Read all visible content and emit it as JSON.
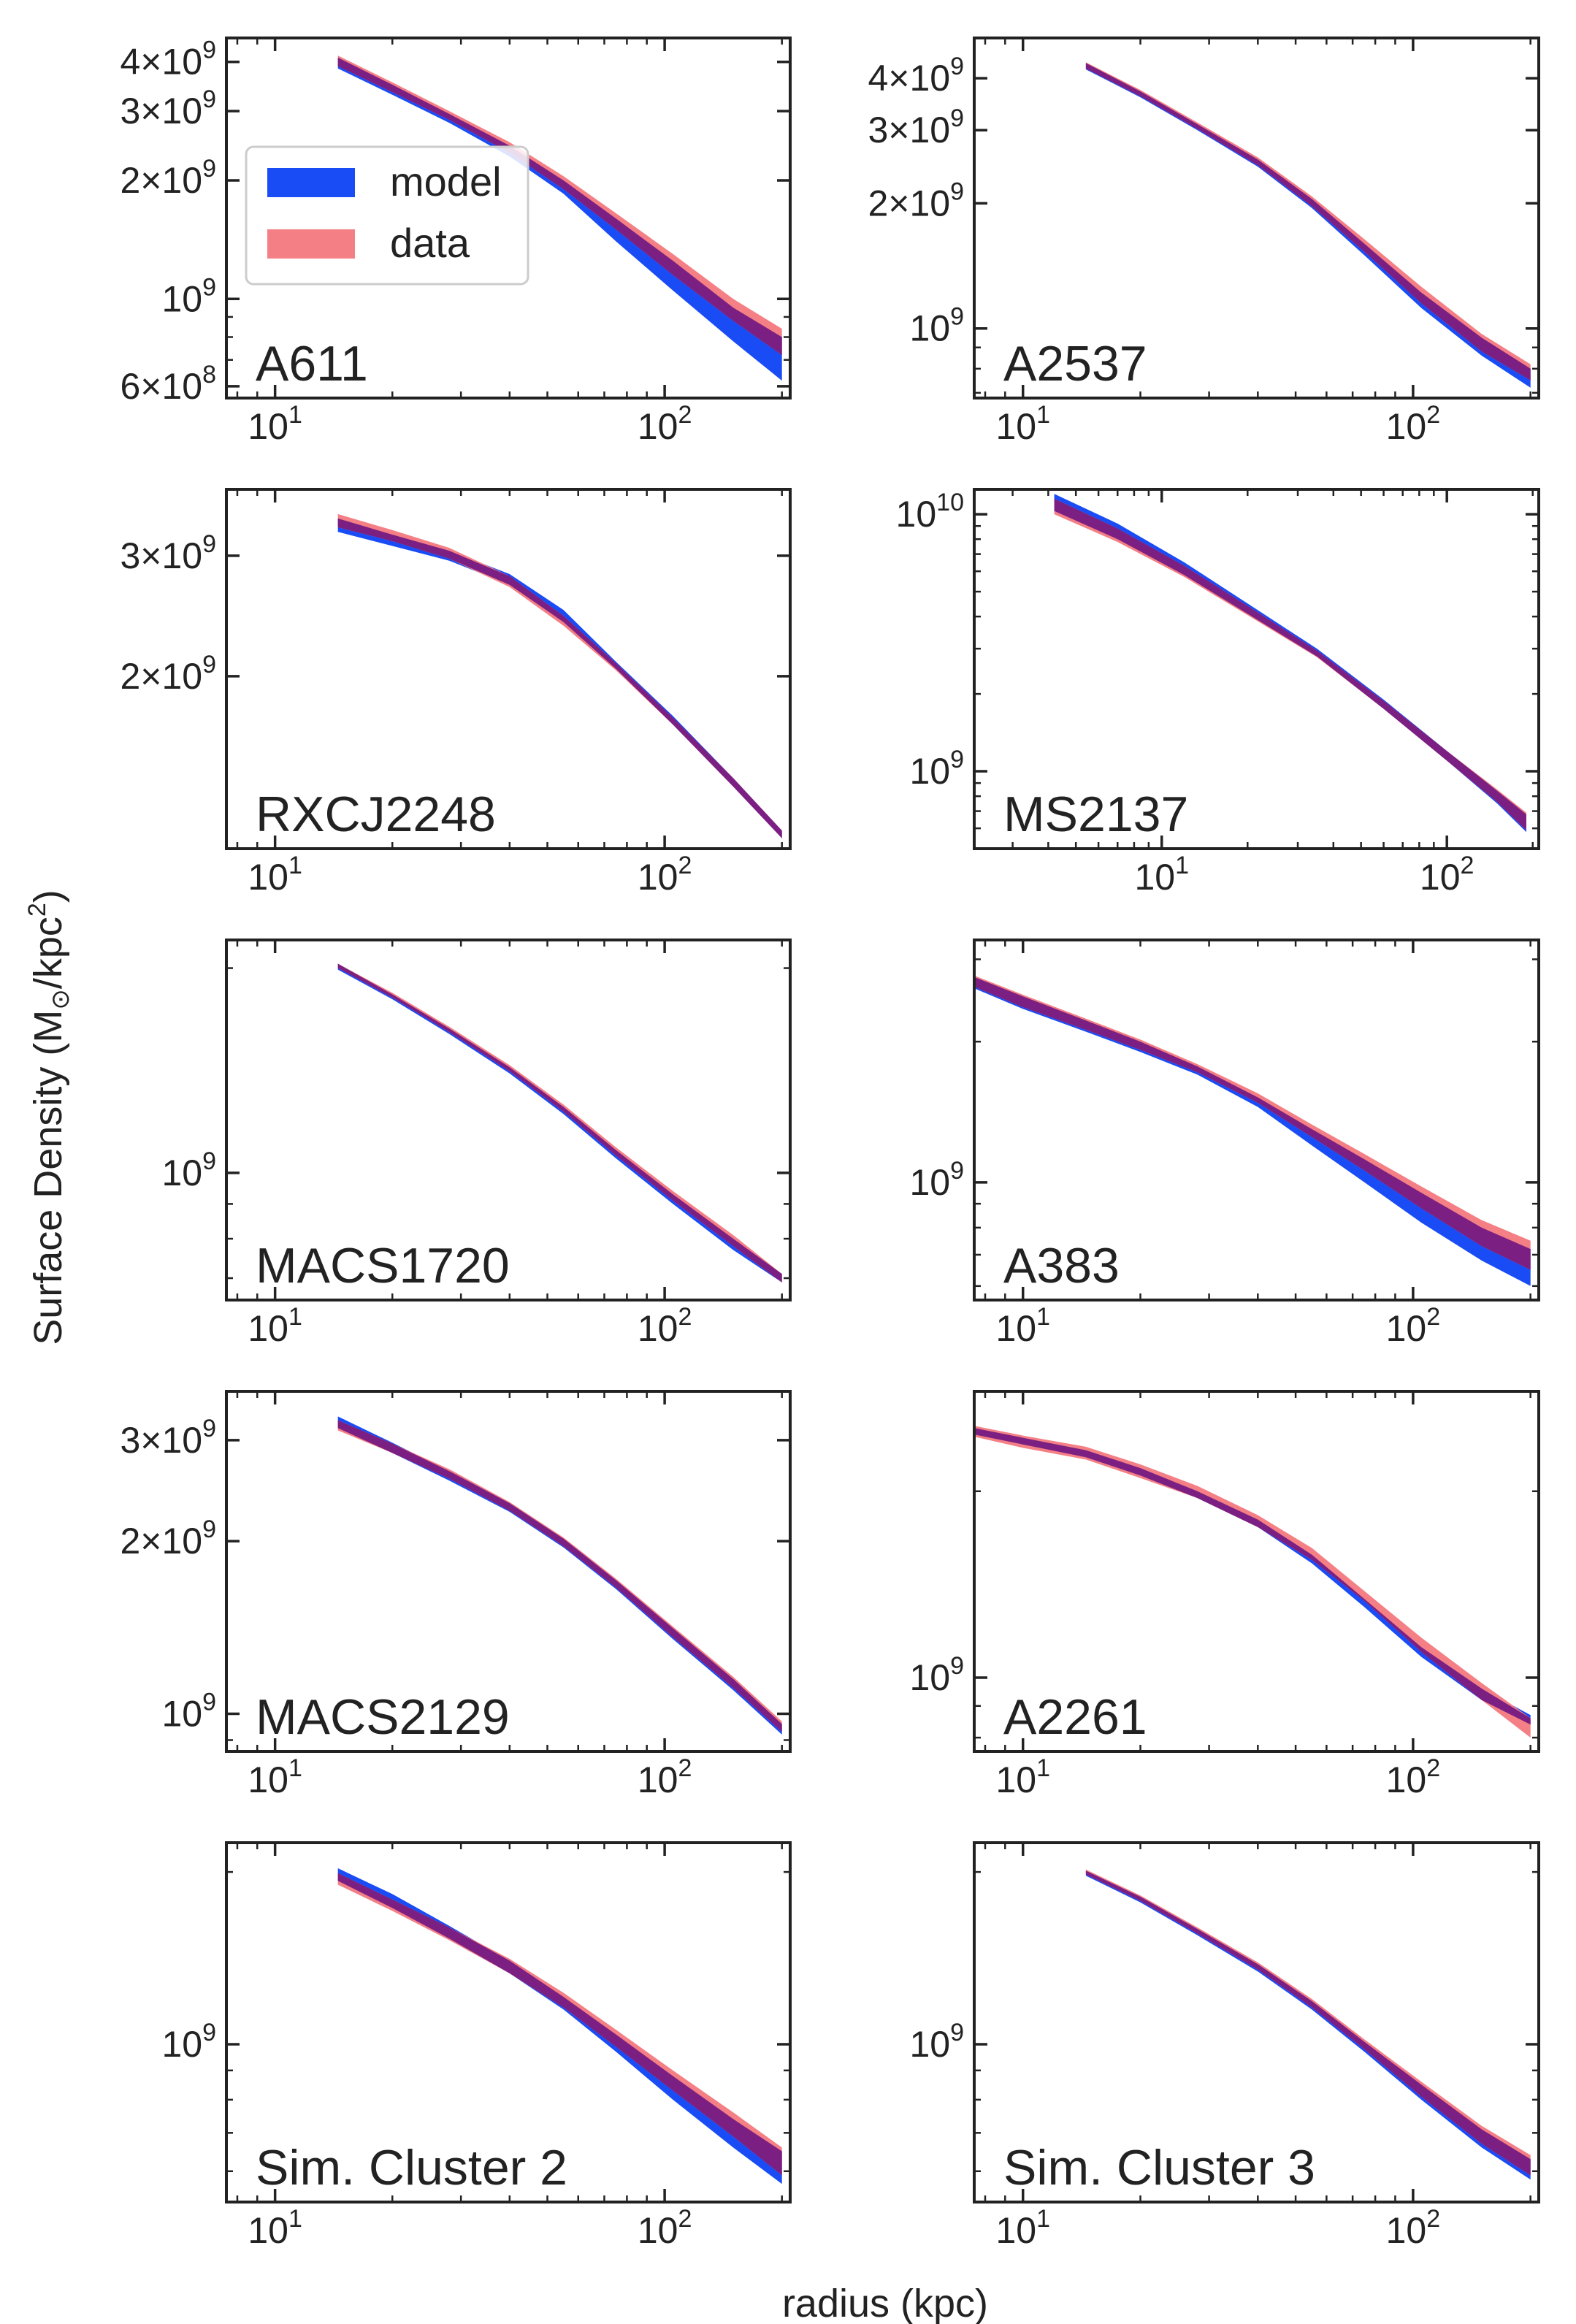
{
  "figure": {
    "xlabel": "radius (kpc)",
    "ylabel": "Surface Density (M",
    "ylabel_sub": "⊙",
    "ylabel_mid": "/kpc",
    "ylabel_sup": "2",
    "ylabel_end": ")",
    "colors": {
      "model": "#1a4cf5",
      "data": "#f47f84",
      "overlap": "#7b1f82"
    }
  },
  "legend": {
    "items": [
      {
        "label": "model",
        "color": "#1a4cf5"
      },
      {
        "label": "data",
        "color": "#f47f84"
      }
    ]
  },
  "chart_data": [
    {
      "type": "area",
      "title": "A611",
      "xscale": "log",
      "yscale": "log",
      "xlim": [
        7.5,
        210
      ],
      "ylim": [
        560000000.0,
        4600000000.0
      ],
      "xticks": [
        {
          "v": 10,
          "m": "1"
        },
        {
          "v": 100,
          "m": "2"
        }
      ],
      "yticks": [
        {
          "v": 1000000000.0,
          "c": "",
          "m": "9"
        },
        {
          "v": 2000000000.0,
          "c": "2",
          "m": "9"
        },
        {
          "v": 3000000000.0,
          "c": "3",
          "m": "9"
        },
        {
          "v": 4000000000.0,
          "c": "4",
          "m": "9"
        },
        {
          "v": 600000000.0,
          "c": "6",
          "m": "8"
        }
      ],
      "radius_kpc": [
        14.5,
        20,
        28,
        40,
        55,
        75,
        105,
        150,
        200
      ],
      "model": {
        "lower": [
          3850000000.0,
          3300000000.0,
          2800000000.0,
          2300000000.0,
          1850000000.0,
          1400000000.0,
          1050000000.0,
          780000000.0,
          620000000.0
        ],
        "upper": [
          4100000000.0,
          3500000000.0,
          2950000000.0,
          2450000000.0,
          2000000000.0,
          1600000000.0,
          1250000000.0,
          950000000.0,
          800000000.0
        ]
      },
      "data": {
        "lower": [
          3900000000.0,
          3350000000.0,
          2850000000.0,
          2350000000.0,
          1900000000.0,
          1500000000.0,
          1150000000.0,
          880000000.0,
          720000000.0
        ],
        "upper": [
          4150000000.0,
          3550000000.0,
          3000000000.0,
          2500000000.0,
          2050000000.0,
          1650000000.0,
          1300000000.0,
          1000000000.0,
          840000000.0
        ]
      }
    },
    {
      "type": "area",
      "title": "A2537",
      "xscale": "log",
      "yscale": "log",
      "xlim": [
        7.5,
        210
      ],
      "ylim": [
        680000000.0,
        5000000000.0
      ],
      "xticks": [
        {
          "v": 10,
          "m": "1"
        },
        {
          "v": 100,
          "m": "2"
        }
      ],
      "yticks": [
        {
          "v": 1000000000.0,
          "c": "",
          "m": "9"
        },
        {
          "v": 2000000000.0,
          "c": "2",
          "m": "9"
        },
        {
          "v": 3000000000.0,
          "c": "3",
          "m": "9"
        },
        {
          "v": 4000000000.0,
          "c": "4",
          "m": "9"
        }
      ],
      "radius_kpc": [
        14.5,
        20,
        28,
        40,
        55,
        75,
        105,
        150,
        200
      ],
      "model": {
        "lower": [
          4200000000.0,
          3600000000.0,
          3000000000.0,
          2450000000.0,
          1950000000.0,
          1500000000.0,
          1120000000.0,
          860000000.0,
          720000000.0
        ],
        "upper": [
          4350000000.0,
          3720000000.0,
          3100000000.0,
          2550000000.0,
          2050000000.0,
          1600000000.0,
          1220000000.0,
          950000000.0,
          800000000.0
        ]
      },
      "data": {
        "lower": [
          4220000000.0,
          3620000000.0,
          3020000000.0,
          2470000000.0,
          1970000000.0,
          1530000000.0,
          1150000000.0,
          880000000.0,
          750000000.0
        ],
        "upper": [
          4370000000.0,
          3750000000.0,
          3130000000.0,
          2580000000.0,
          2080000000.0,
          1640000000.0,
          1260000000.0,
          970000000.0,
          820000000.0
        ]
      }
    },
    {
      "type": "area",
      "title": "RXCJ2248",
      "xscale": "log",
      "yscale": "log",
      "xlim": [
        7.5,
        210
      ],
      "ylim": [
        1120000000.0,
        3750000000.0
      ],
      "xticks": [
        {
          "v": 10,
          "m": "1"
        },
        {
          "v": 100,
          "m": "2"
        }
      ],
      "yticks": [
        {
          "v": 2000000000.0,
          "c": "2",
          "m": "9"
        },
        {
          "v": 3000000000.0,
          "c": "3",
          "m": "9"
        }
      ],
      "radius_kpc": [
        14.5,
        20,
        28,
        40,
        55,
        75,
        105,
        150,
        200
      ],
      "model": {
        "lower": [
          3250000000.0,
          3100000000.0,
          2950000000.0,
          2720000000.0,
          2400000000.0,
          2050000000.0,
          1700000000.0,
          1380000000.0,
          1160000000.0
        ],
        "upper": [
          3400000000.0,
          3220000000.0,
          3050000000.0,
          2820000000.0,
          2500000000.0,
          2100000000.0,
          1750000000.0,
          1420000000.0,
          1190000000.0
        ]
      },
      "data": {
        "lower": [
          3300000000.0,
          3150000000.0,
          2970000000.0,
          2700000000.0,
          2370000000.0,
          2040000000.0,
          1700000000.0,
          1380000000.0,
          1160000000.0
        ],
        "upper": [
          3450000000.0,
          3270000000.0,
          3080000000.0,
          2800000000.0,
          2450000000.0,
          2090000000.0,
          1740000000.0,
          1420000000.0,
          1190000000.0
        ]
      }
    },
    {
      "type": "area",
      "title": "MS2137",
      "xscale": "log",
      "yscale": "log",
      "xlim": [
        2.2,
        210
      ],
      "ylim": [
        500000000.0,
        12500000000.0
      ],
      "xticks": [
        {
          "v": 10,
          "m": "1"
        },
        {
          "v": 100,
          "m": "2"
        }
      ],
      "yticks": [
        {
          "v": 1000000000.0,
          "c": "",
          "m": "9"
        },
        {
          "v": 10000000000.0,
          "c": "",
          "m": "10"
        }
      ],
      "radius_kpc": [
        4.2,
        7,
        12,
        20,
        35,
        60,
        100,
        150,
        190
      ],
      "model": {
        "lower": [
          10300000000.0,
          8000000000.0,
          5800000000.0,
          4100000000.0,
          2800000000.0,
          1750000000.0,
          1100000000.0,
          750000000.0,
          580000000.0
        ],
        "upper": [
          12000000000.0,
          9200000000.0,
          6500000000.0,
          4500000000.0,
          3000000000.0,
          1900000000.0,
          1200000000.0,
          840000000.0,
          680000000.0
        ]
      },
      "data": {
        "lower": [
          10000000000.0,
          7800000000.0,
          5700000000.0,
          4050000000.0,
          2780000000.0,
          1750000000.0,
          1100000000.0,
          760000000.0,
          590000000.0
        ],
        "upper": [
          11500000000.0,
          8800000000.0,
          6300000000.0,
          4400000000.0,
          2950000000.0,
          1880000000.0,
          1200000000.0,
          850000000.0,
          690000000.0
        ]
      }
    },
    {
      "type": "area",
      "title": "MACS1720",
      "xscale": "log",
      "yscale": "log",
      "xlim": [
        7.5,
        210
      ],
      "ylim": [
        650000000.0,
        2200000000.0
      ],
      "xticks": [
        {
          "v": 10,
          "m": "1"
        },
        {
          "v": 100,
          "m": "2"
        }
      ],
      "yticks": [
        {
          "v": 1000000000.0,
          "c": "",
          "m": "9"
        }
      ],
      "radius_kpc": [
        14.5,
        20,
        28,
        40,
        55,
        75,
        105,
        150,
        200
      ],
      "model": {
        "lower": [
          1990000000.0,
          1800000000.0,
          1600000000.0,
          1400000000.0,
          1220000000.0,
          1050000000.0,
          900000000.0,
          770000000.0,
          690000000.0
        ],
        "upper": [
          2030000000.0,
          1830000000.0,
          1630000000.0,
          1430000000.0,
          1250000000.0,
          1080000000.0,
          930000000.0,
          800000000.0,
          710000000.0
        ]
      },
      "data": {
        "lower": [
          2000000000.0,
          1810000000.0,
          1610000000.0,
          1410000000.0,
          1230000000.0,
          1060000000.0,
          910000000.0,
          780000000.0,
          690000000.0
        ],
        "upper": [
          2030000000.0,
          1840000000.0,
          1640000000.0,
          1440000000.0,
          1260000000.0,
          1090000000.0,
          940000000.0,
          810000000.0,
          710000000.0
        ]
      }
    },
    {
      "type": "area",
      "title": "A383",
      "xscale": "log",
      "yscale": "log",
      "xlim": [
        7.5,
        210
      ],
      "ylim": [
        560000000.0,
        3300000000.0
      ],
      "xticks": [
        {
          "v": 10,
          "m": "1"
        },
        {
          "v": 100,
          "m": "2"
        }
      ],
      "yticks": [
        {
          "v": 1000000000.0,
          "c": "",
          "m": "9"
        }
      ],
      "radius_kpc": [
        7.5,
        10,
        14.5,
        20,
        28,
        40,
        55,
        75,
        105,
        150,
        200
      ],
      "model": {
        "lower": [
          2600000000.0,
          2350000000.0,
          2100000000.0,
          1900000000.0,
          1700000000.0,
          1450000000.0,
          1200000000.0,
          1000000000.0,
          820000000.0,
          680000000.0,
          600000000.0
        ],
        "upper": [
          2750000000.0,
          2500000000.0,
          2220000000.0,
          2000000000.0,
          1770000000.0,
          1520000000.0,
          1300000000.0,
          1120000000.0,
          950000000.0,
          800000000.0,
          720000000.0
        ]
      },
      "data": {
        "lower": [
          2620000000.0,
          2370000000.0,
          2120000000.0,
          1920000000.0,
          1720000000.0,
          1480000000.0,
          1250000000.0,
          1060000000.0,
          880000000.0,
          730000000.0,
          650000000.0
        ],
        "upper": [
          2770000000.0,
          2520000000.0,
          2240000000.0,
          2020000000.0,
          1790000000.0,
          1550000000.0,
          1330000000.0,
          1150000000.0,
          980000000.0,
          830000000.0,
          750000000.0
        ]
      }
    },
    {
      "type": "area",
      "title": "MACS2129",
      "xscale": "log",
      "yscale": "log",
      "xlim": [
        7.5,
        210
      ],
      "ylim": [
        860000000.0,
        3650000000.0
      ],
      "xticks": [
        {
          "v": 10,
          "m": "1"
        },
        {
          "v": 100,
          "m": "2"
        }
      ],
      "yticks": [
        {
          "v": 1000000000.0,
          "c": "",
          "m": "9"
        },
        {
          "v": 2000000000.0,
          "c": "2",
          "m": "9"
        },
        {
          "v": 3000000000.0,
          "c": "3",
          "m": "9"
        }
      ],
      "radius_kpc": [
        14.5,
        20,
        28,
        40,
        55,
        75,
        105,
        150,
        200
      ],
      "model": {
        "lower": [
          3150000000.0,
          2850000000.0,
          2550000000.0,
          2250000000.0,
          1950000000.0,
          1650000000.0,
          1350000000.0,
          1100000000.0,
          920000000.0
        ],
        "upper": [
          3300000000.0,
          2970000000.0,
          2650000000.0,
          2330000000.0,
          2020000000.0,
          1710000000.0,
          1410000000.0,
          1150000000.0,
          960000000.0
        ]
      },
      "data": {
        "lower": [
          3120000000.0,
          2850000000.0,
          2570000000.0,
          2260000000.0,
          1960000000.0,
          1660000000.0,
          1360000000.0,
          1110000000.0,
          930000000.0
        ],
        "upper": [
          3250000000.0,
          2960000000.0,
          2670000000.0,
          2340000000.0,
          2030000000.0,
          1720000000.0,
          1420000000.0,
          1160000000.0,
          970000000.0
        ]
      }
    },
    {
      "type": "area",
      "title": "A2261",
      "xscale": "log",
      "yscale": "log",
      "xlim": [
        7.5,
        210
      ],
      "ylim": [
        760000000.0,
        2900000000.0
      ],
      "xticks": [
        {
          "v": 10,
          "m": "1"
        },
        {
          "v": 100,
          "m": "2"
        }
      ],
      "yticks": [
        {
          "v": 1000000000.0,
          "c": "",
          "m": "9"
        }
      ],
      "radius_kpc": [
        7.5,
        10,
        14.5,
        20,
        28,
        40,
        55,
        75,
        105,
        150,
        200
      ],
      "model": {
        "lower": [
          2470000000.0,
          2380000000.0,
          2270000000.0,
          2120000000.0,
          1950000000.0,
          1750000000.0,
          1530000000.0,
          1300000000.0,
          1080000000.0,
          920000000.0,
          840000000.0
        ],
        "upper": [
          2530000000.0,
          2440000000.0,
          2330000000.0,
          2180000000.0,
          2000000000.0,
          1800000000.0,
          1580000000.0,
          1340000000.0,
          1120000000.0,
          960000000.0,
          870000000.0
        ]
      },
      "data": {
        "lower": [
          2450000000.0,
          2350000000.0,
          2250000000.0,
          2100000000.0,
          1950000000.0,
          1750000000.0,
          1550000000.0,
          1330000000.0,
          1100000000.0,
          920000000.0,
          800000000.0
        ],
        "upper": [
          2550000000.0,
          2460000000.0,
          2360000000.0,
          2210000000.0,
          2040000000.0,
          1830000000.0,
          1620000000.0,
          1380000000.0,
          1160000000.0,
          980000000.0,
          860000000.0
        ]
      }
    },
    {
      "type": "area",
      "title": "Sim. Cluster 2",
      "xscale": "log",
      "yscale": "log",
      "xlim": [
        7.5,
        210
      ],
      "ylim": [
        530000000.0,
        2250000000.0
      ],
      "xticks": [
        {
          "v": 10,
          "m": "1"
        },
        {
          "v": 100,
          "m": "2"
        }
      ],
      "yticks": [
        {
          "v": 1000000000.0,
          "c": "",
          "m": "9"
        }
      ],
      "radius_kpc": [
        14.5,
        20,
        28,
        40,
        55,
        75,
        105,
        150,
        200
      ],
      "model": {
        "lower": [
          1930000000.0,
          1730000000.0,
          1530000000.0,
          1330000000.0,
          1150000000.0,
          970000000.0,
          800000000.0,
          660000000.0,
          570000000.0
        ],
        "upper": [
          2030000000.0,
          1830000000.0,
          1610000000.0,
          1400000000.0,
          1210000000.0,
          1040000000.0,
          880000000.0,
          740000000.0,
          650000000.0
        ]
      },
      "data": {
        "lower": [
          1900000000.0,
          1710000000.0,
          1520000000.0,
          1330000000.0,
          1160000000.0,
          990000000.0,
          830000000.0,
          690000000.0,
          590000000.0
        ],
        "upper": [
          1990000000.0,
          1790000000.0,
          1600000000.0,
          1410000000.0,
          1230000000.0,
          1060000000.0,
          900000000.0,
          760000000.0,
          660000000.0
        ]
      }
    },
    {
      "type": "area",
      "title": "Sim. Cluster 3",
      "xscale": "log",
      "yscale": "log",
      "xlim": [
        7.5,
        210
      ],
      "ylim": [
        530000000.0,
        2250000000.0
      ],
      "xticks": [
        {
          "v": 10,
          "m": "1"
        },
        {
          "v": 100,
          "m": "2"
        }
      ],
      "yticks": [
        {
          "v": 1000000000.0,
          "c": "",
          "m": "9"
        }
      ],
      "radius_kpc": [
        14.5,
        20,
        28,
        40,
        55,
        75,
        105,
        150,
        200
      ],
      "model": {
        "lower": [
          1970000000.0,
          1770000000.0,
          1550000000.0,
          1340000000.0,
          1150000000.0,
          970000000.0,
          800000000.0,
          660000000.0,
          580000000.0
        ],
        "upper": [
          2010000000.0,
          1810000000.0,
          1590000000.0,
          1380000000.0,
          1190000000.0,
          1010000000.0,
          850000000.0,
          710000000.0,
          630000000.0
        ]
      },
      "data": {
        "lower": [
          1980000000.0,
          1780000000.0,
          1560000000.0,
          1350000000.0,
          1160000000.0,
          980000000.0,
          810000000.0,
          670000000.0,
          590000000.0
        ],
        "upper": [
          2020000000.0,
          1820000000.0,
          1600000000.0,
          1390000000.0,
          1200000000.0,
          1020000000.0,
          860000000.0,
          720000000.0,
          640000000.0
        ]
      }
    }
  ]
}
